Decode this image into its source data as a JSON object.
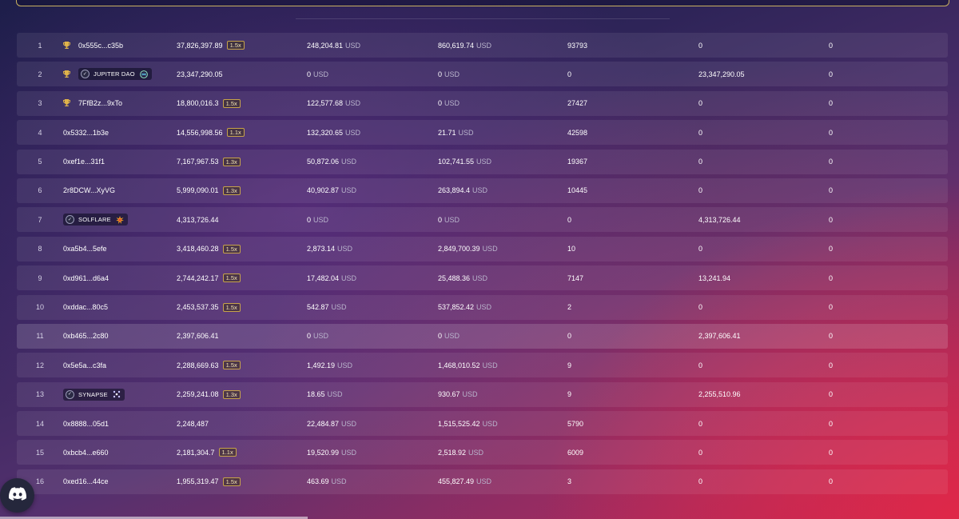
{
  "rows": [
    {
      "rank": "1",
      "trophy": true,
      "address": "0x555c...c35b",
      "points": "37,826,397.89",
      "multiplier": "1.5x",
      "v1": "248,204.81",
      "v1_unit": "USD",
      "v2": "860,619.74",
      "v2_unit": "USD",
      "count": "93793",
      "v3": "0",
      "v4": "0"
    },
    {
      "rank": "2",
      "trophy": true,
      "project": "JUPITER DAO",
      "project_logo": "jupiter-logo-icon",
      "points": "23,347,290.05",
      "v1": "0",
      "v1_unit": "USD",
      "v2": "0",
      "v2_unit": "USD",
      "count": "0",
      "v3": "23,347,290.05",
      "v4": "0"
    },
    {
      "rank": "3",
      "trophy": true,
      "address": "7FfB2z...9xTo",
      "points": "18,800,016.3",
      "multiplier": "1.5x",
      "v1": "122,577.68",
      "v1_unit": "USD",
      "v2": "0",
      "v2_unit": "USD",
      "count": "27427",
      "v3": "0",
      "v4": "0"
    },
    {
      "rank": "4",
      "address": "0x5332...1b3e",
      "points": "14,556,998.56",
      "multiplier": "1.1x",
      "v1": "132,320.65",
      "v1_unit": "USD",
      "v2": "21.71",
      "v2_unit": "USD",
      "count": "42598",
      "v3": "0",
      "v4": "0"
    },
    {
      "rank": "5",
      "address": "0xef1e...31f1",
      "points": "7,167,967.53",
      "multiplier": "1.3x",
      "v1": "50,872.06",
      "v1_unit": "USD",
      "v2": "102,741.55",
      "v2_unit": "USD",
      "count": "19367",
      "v3": "0",
      "v4": "0"
    },
    {
      "rank": "6",
      "address": "2r8DCW...XyVG",
      "points": "5,999,090.01",
      "multiplier": "1.3x",
      "v1": "40,902.87",
      "v1_unit": "USD",
      "v2": "263,894.4",
      "v2_unit": "USD",
      "count": "10445",
      "v3": "0",
      "v4": "0"
    },
    {
      "rank": "7",
      "project": "SOLFLARE",
      "project_logo": "solflare-logo-icon",
      "points": "4,313,726.44",
      "v1": "0",
      "v1_unit": "USD",
      "v2": "0",
      "v2_unit": "USD",
      "count": "0",
      "v3": "4,313,726.44",
      "v4": "0"
    },
    {
      "rank": "8",
      "address": "0xa5b4...5efe",
      "points": "3,418,460.28",
      "multiplier": "1.5x",
      "v1": "2,873.14",
      "v1_unit": "USD",
      "v2": "2,849,700.39",
      "v2_unit": "USD",
      "count": "10",
      "v3": "0",
      "v4": "0"
    },
    {
      "rank": "9",
      "address": "0xd961...d6a4",
      "points": "2,744,242.17",
      "multiplier": "1.5x",
      "v1": "17,482.04",
      "v1_unit": "USD",
      "v2": "25,488.36",
      "v2_unit": "USD",
      "count": "7147",
      "v3": "13,241.94",
      "v4": "0"
    },
    {
      "rank": "10",
      "address": "0xddac...80c5",
      "points": "2,453,537.35",
      "multiplier": "1.5x",
      "v1": "542.87",
      "v1_unit": "USD",
      "v2": "537,852.42",
      "v2_unit": "USD",
      "count": "2",
      "v3": "0",
      "v4": "0"
    },
    {
      "rank": "11",
      "address": "0xb465...2c80",
      "points": "2,397,606.41",
      "v1": "0",
      "v1_unit": "USD",
      "v2": "0",
      "v2_unit": "USD",
      "count": "0",
      "v3": "2,397,606.41",
      "v4": "0",
      "highlight": true
    },
    {
      "rank": "12",
      "address": "0x5e5a...c3fa",
      "points": "2,288,669.63",
      "multiplier": "1.5x",
      "v1": "1,492.19",
      "v1_unit": "USD",
      "v2": "1,468,010.52",
      "v2_unit": "USD",
      "count": "9",
      "v3": "0",
      "v4": "0"
    },
    {
      "rank": "13",
      "project": "SYNAPSE",
      "project_logo": "synapse-logo-icon",
      "points": "2,259,241.08",
      "multiplier": "1.3x",
      "v1": "18.65",
      "v1_unit": "USD",
      "v2": "930.67",
      "v2_unit": "USD",
      "count": "9",
      "v3": "2,255,510.96",
      "v4": "0"
    },
    {
      "rank": "14",
      "address": "0x8888...05d1",
      "points": "2,248,487",
      "v1": "22,484.87",
      "v1_unit": "USD",
      "v2": "1,515,525.42",
      "v2_unit": "USD",
      "count": "5790",
      "v3": "0",
      "v4": "0"
    },
    {
      "rank": "15",
      "address": "0xbcb4...e660",
      "points": "2,181,304.7",
      "multiplier": "1.1x",
      "v1": "19,520.99",
      "v1_unit": "USD",
      "v2": "2,518.92",
      "v2_unit": "USD",
      "count": "6009",
      "v3": "0",
      "v4": "0"
    },
    {
      "rank": "16",
      "address": "0xed16...44ce",
      "points": "1,955,319.47",
      "multiplier": "1.5x",
      "v1": "463.69",
      "v1_unit": "USD",
      "v2": "455,827.49",
      "v2_unit": "USD",
      "count": "3",
      "v3": "0",
      "v4": "0"
    }
  ],
  "icons": {
    "trophy": "trophy-icon",
    "verified": "verified-check-icon",
    "discord": "discord-icon"
  },
  "colors": {
    "badge_border": "#c6a34a",
    "trophy": "#e0b34a",
    "top_panel_border": "#c8b060"
  }
}
